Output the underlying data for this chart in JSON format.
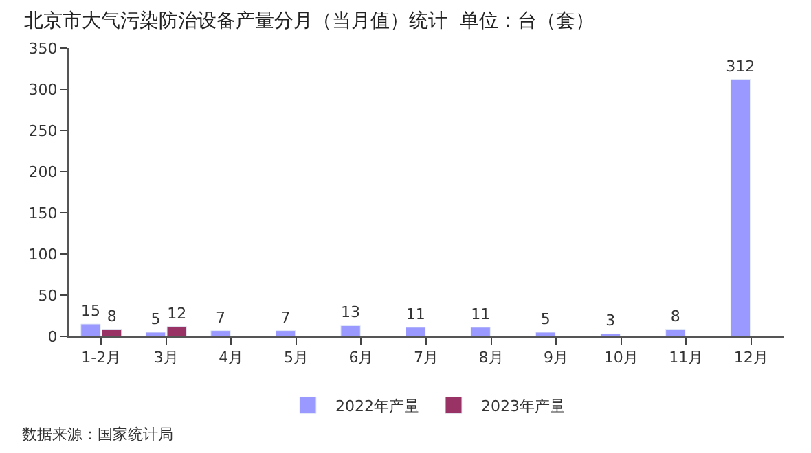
{
  "chart_data": {
    "type": "bar",
    "title": "北京市大气污染防治设备产量分月（当月值）统计  单位：台（套）",
    "categories": [
      "1-2月",
      "3月",
      "4月",
      "5月",
      "6月",
      "7月",
      "8月",
      "9月",
      "10月",
      "11月",
      "12月"
    ],
    "series": [
      {
        "name": "2022年产量",
        "color": "#9999ff",
        "values": [
          15,
          5,
          7,
          7,
          13,
          11,
          11,
          5,
          3,
          8,
          312
        ]
      },
      {
        "name": "2023年产量",
        "color": "#993366",
        "values": [
          8,
          12,
          null,
          null,
          null,
          null,
          null,
          null,
          null,
          null,
          null
        ]
      }
    ],
    "ylim": [
      0,
      350
    ],
    "yticks": [
      0,
      50,
      100,
      150,
      200,
      250,
      300,
      350
    ],
    "legend": "bottom",
    "data_labels": true,
    "annotations": [
      "数据来源：国家统计局"
    ]
  }
}
